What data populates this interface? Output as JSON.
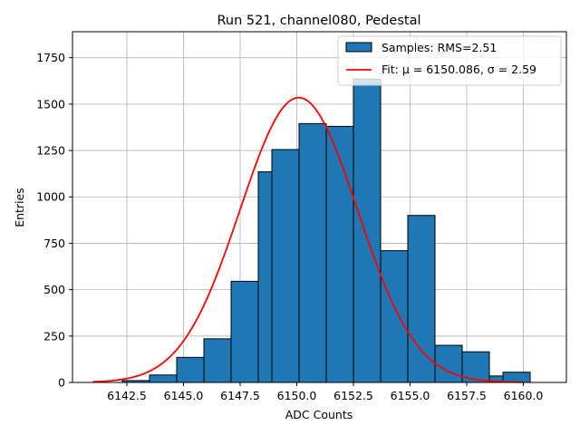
{
  "chart_data": {
    "type": "bar",
    "title": "Run 521, channel080, Pedestal",
    "xlabel": "ADC Counts",
    "ylabel": "Entries",
    "xlim": [
      6140.1,
      6161.9
    ],
    "ylim": [
      0,
      1890
    ],
    "grid": true,
    "legend_position": "top-right",
    "x_ticks": [
      6142.5,
      6145.0,
      6147.5,
      6150.0,
      6152.5,
      6155.0,
      6157.5,
      6160.0
    ],
    "x_tick_labels": [
      "6142.5",
      "6145.0",
      "6147.5",
      "6150.0",
      "6152.5",
      "6155.0",
      "6157.5",
      "6160.0"
    ],
    "y_ticks": [
      0,
      250,
      500,
      750,
      1000,
      1250,
      1500,
      1750
    ],
    "y_tick_labels": [
      "0",
      "250",
      "500",
      "750",
      "1000",
      "1250",
      "1500",
      "1750"
    ],
    "histogram": {
      "name": "Samples: RMS=2.51",
      "color": "#1f77b4",
      "bins": [
        {
          "x0": 6141.0,
          "x1": 6142.3,
          "value": 0
        },
        {
          "x0": 6142.3,
          "x1": 6143.5,
          "value": 10
        },
        {
          "x0": 6143.5,
          "x1": 6144.7,
          "value": 40
        },
        {
          "x0": 6144.7,
          "x1": 6145.9,
          "value": 135
        },
        {
          "x0": 6145.9,
          "x1": 6147.1,
          "value": 235
        },
        {
          "x0": 6147.1,
          "x1": 6148.3,
          "value": 545
        },
        {
          "x0": 6148.3,
          "x1": 6148.9,
          "value": 1135
        },
        {
          "x0": 6148.9,
          "x1": 6150.1,
          "value": 1255
        },
        {
          "x0": 6150.1,
          "x1": 6151.3,
          "value": 1395
        },
        {
          "x0": 6151.3,
          "x1": 6152.5,
          "value": 1380
        },
        {
          "x0": 6152.5,
          "x1": 6153.7,
          "value": 1635
        },
        {
          "x0": 6153.7,
          "x1": 6154.9,
          "value": 710
        },
        {
          "x0": 6154.9,
          "x1": 6156.1,
          "value": 900
        },
        {
          "x0": 6156.1,
          "x1": 6157.3,
          "value": 200
        },
        {
          "x0": 6157.3,
          "x1": 6158.5,
          "value": 165
        },
        {
          "x0": 6158.5,
          "x1": 6159.1,
          "value": 35
        },
        {
          "x0": 6159.1,
          "x1": 6160.3,
          "value": 55
        }
      ]
    },
    "fit": {
      "name": "Fit: μ = 6150.086, σ = 2.59",
      "color": "#ff0000",
      "mu": 6150.086,
      "sigma": 2.59,
      "amplitude": 1535,
      "x_range": [
        6141.0,
        6160.0
      ]
    }
  }
}
